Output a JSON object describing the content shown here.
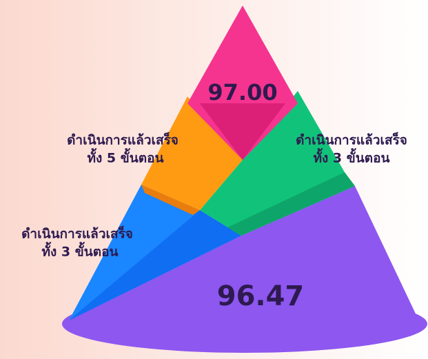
{
  "top_value": "97.00",
  "bottom_value": "96.47",
  "labels": [
    {
      "line1": "ดำเนินการแล้วเสร็จ",
      "line2": "ทั้ง 5 ขั้นตอน"
    },
    {
      "line1": "ดำเนินการแล้วเสร็จ",
      "line2": "ทั้ง 3 ขั้นตอน"
    },
    {
      "line1": "ดำเนินการแล้วเสร็จ",
      "line2": "ทั้ง 3 ขั้นตอน"
    }
  ]
}
